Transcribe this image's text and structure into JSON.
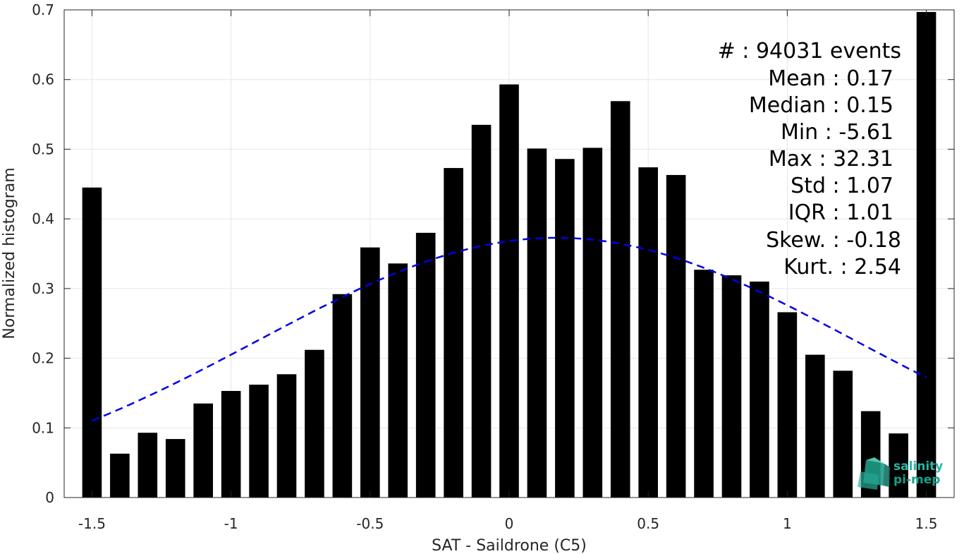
{
  "chart_data": {
    "type": "bar",
    "xlabel": "SAT - Saildrone (C5)",
    "ylabel": "Normalized histogram",
    "xlim": [
      -1.6,
      1.6
    ],
    "ylim": [
      0,
      0.7
    ],
    "xticks": [
      -1.5,
      -1,
      -0.5,
      0,
      0.5,
      1,
      1.5
    ],
    "xtick_labels": [
      "-1.5",
      "-1",
      "-0.5",
      "0",
      "0.5",
      "1",
      "1.5"
    ],
    "yticks": [
      0,
      0.1,
      0.2,
      0.3,
      0.4,
      0.5,
      0.6,
      0.7
    ],
    "ytick_labels": [
      "0",
      "0.1",
      "0.2",
      "0.3",
      "0.4",
      "0.5",
      "0.6",
      "0.7"
    ],
    "grid": true,
    "bar_width": 0.07,
    "bar_color": "#000000",
    "bars": [
      {
        "x": -1.5,
        "y": 0.445
      },
      {
        "x": -1.4,
        "y": 0.063
      },
      {
        "x": -1.3,
        "y": 0.093
      },
      {
        "x": -1.2,
        "y": 0.084
      },
      {
        "x": -1.1,
        "y": 0.135
      },
      {
        "x": -1.0,
        "y": 0.153
      },
      {
        "x": -0.9,
        "y": 0.162
      },
      {
        "x": -0.8,
        "y": 0.177
      },
      {
        "x": -0.7,
        "y": 0.212
      },
      {
        "x": -0.6,
        "y": 0.292
      },
      {
        "x": -0.5,
        "y": 0.359
      },
      {
        "x": -0.4,
        "y": 0.336
      },
      {
        "x": -0.3,
        "y": 0.38
      },
      {
        "x": -0.2,
        "y": 0.473
      },
      {
        "x": -0.1,
        "y": 0.535
      },
      {
        "x": 0.0,
        "y": 0.593
      },
      {
        "x": 0.1,
        "y": 0.501
      },
      {
        "x": 0.2,
        "y": 0.486
      },
      {
        "x": 0.3,
        "y": 0.502
      },
      {
        "x": 0.4,
        "y": 0.569
      },
      {
        "x": 0.5,
        "y": 0.474
      },
      {
        "x": 0.6,
        "y": 0.463
      },
      {
        "x": 0.7,
        "y": 0.327
      },
      {
        "x": 0.8,
        "y": 0.319
      },
      {
        "x": 0.9,
        "y": 0.31
      },
      {
        "x": 1.0,
        "y": 0.266
      },
      {
        "x": 1.1,
        "y": 0.205
      },
      {
        "x": 1.2,
        "y": 0.182
      },
      {
        "x": 1.3,
        "y": 0.124
      },
      {
        "x": 1.4,
        "y": 0.092
      },
      {
        "x": 1.5,
        "y": 0.697
      }
    ],
    "gaussian_fit": {
      "mean": 0.17,
      "std": 1.07,
      "x_range": [
        -1.5,
        1.5
      ],
      "color": "#0000e6",
      "line_style": "dashed"
    },
    "stats": [
      "#  : 94031 events",
      "Mean : 0.17",
      "Median : 0.15",
      "Min : -5.61",
      "Max : 32.31",
      "Std : 1.07",
      "IQR : 1.01",
      "Skew. : -0.18",
      "Kurt. : 2.54"
    ],
    "logo": {
      "line1": "salinity",
      "line2": "pi-mep"
    }
  }
}
